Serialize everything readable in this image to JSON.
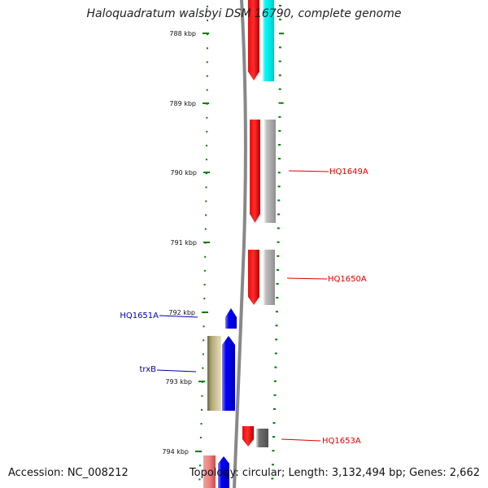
{
  "title": "Haloquadratum walsbyi DSM 16790, complete genome",
  "footer": {
    "accession": "Accession: NC_008212",
    "summary": "Topology: circular; Length: 3,132,494 bp; Genes: 2,662"
  },
  "colors": {
    "tick_green": "#008000",
    "label_red": "#dd0000",
    "label_blue": "#0000aa",
    "backbone": "#888888",
    "gene_red": "#ff0000",
    "gene_cyan": "#00ffff",
    "gene_gray": "#b8b8b8",
    "gene_darkgray": "#707070",
    "gene_blue": "#0000ff",
    "gene_olive": "#b0a878",
    "gene_pink": "#f08080"
  },
  "scale_labels": [
    "788 kbp",
    "789 kbp",
    "790 kbp",
    "791 kbp",
    "792 kbp",
    "793 kbp",
    "794 kbp"
  ],
  "gene_labels": {
    "hq1649a": "HQ1649A",
    "hq1650a": "HQ1650A",
    "hq1651a": "HQ1651A",
    "trxb": "trxB",
    "hq1653a": "HQ1653A"
  }
}
